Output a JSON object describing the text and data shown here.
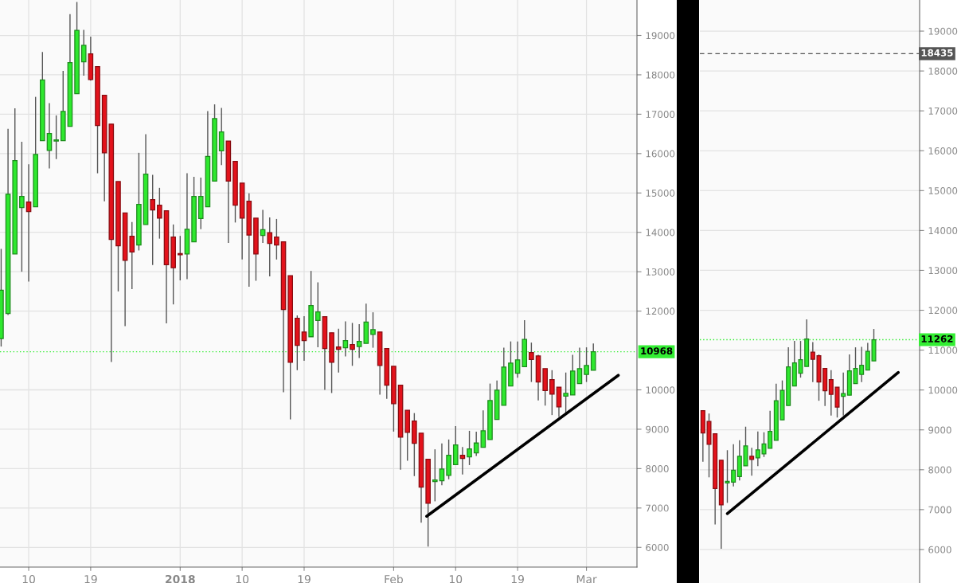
{
  "chart_data": [
    {
      "type": "candlestick",
      "x": [
        "2017-12-06",
        "2017-12-07",
        "2017-12-08",
        "2017-12-09",
        "2017-12-10",
        "2017-12-11",
        "2017-12-12",
        "2017-12-13",
        "2017-12-14",
        "2017-12-15",
        "2017-12-16",
        "2017-12-17",
        "2017-12-18",
        "2017-12-19",
        "2017-12-20",
        "2017-12-21",
        "2017-12-22",
        "2017-12-23",
        "2017-12-24",
        "2017-12-25",
        "2017-12-26",
        "2017-12-27",
        "2017-12-28",
        "2017-12-29",
        "2017-12-30",
        "2017-12-31",
        "2018-01-01",
        "2018-01-02",
        "2018-01-03",
        "2018-01-04",
        "2018-01-05",
        "2018-01-06",
        "2018-01-07",
        "2018-01-08",
        "2018-01-09",
        "2018-01-10",
        "2018-01-11",
        "2018-01-12",
        "2018-01-13",
        "2018-01-14",
        "2018-01-15",
        "2018-01-16",
        "2018-01-17",
        "2018-01-18",
        "2018-01-19",
        "2018-01-20",
        "2018-01-21",
        "2018-01-22",
        "2018-01-23",
        "2018-01-24",
        "2018-01-25",
        "2018-01-26",
        "2018-01-27",
        "2018-01-28",
        "2018-01-29",
        "2018-01-30",
        "2018-01-31",
        "2018-02-01",
        "2018-02-02",
        "2018-02-03",
        "2018-02-04",
        "2018-02-05",
        "2018-02-06",
        "2018-02-07",
        "2018-02-08",
        "2018-02-09",
        "2018-02-10",
        "2018-02-11",
        "2018-02-12",
        "2018-02-13",
        "2018-02-14",
        "2018-02-15",
        "2018-02-16",
        "2018-02-17",
        "2018-02-18",
        "2018-02-19",
        "2018-02-20",
        "2018-02-21",
        "2018-02-22",
        "2018-02-23",
        "2018-02-24",
        "2018-02-25",
        "2018-02-26",
        "2018-02-27",
        "2018-02-28",
        "2018-03-01",
        "2018-03-02"
      ],
      "ohlc": [
        [
          11300,
          13580,
          11100,
          12530
        ],
        [
          11940,
          16630,
          11900,
          14970
        ],
        [
          13450,
          17150,
          13450,
          15820
        ],
        [
          14630,
          16300,
          13000,
          14910
        ],
        [
          14770,
          15730,
          12750,
          14530
        ],
        [
          14650,
          17440,
          14650,
          15980
        ],
        [
          16330,
          18580,
          16330,
          17870
        ],
        [
          16080,
          17280,
          15620,
          16510
        ],
        [
          16320,
          16970,
          15860,
          16350
        ],
        [
          16330,
          18100,
          16330,
          17070
        ],
        [
          16690,
          19540,
          16690,
          18310
        ],
        [
          17520,
          19850,
          17520,
          19130
        ],
        [
          18330,
          19140,
          17980,
          18750
        ],
        [
          18530,
          18970,
          17850,
          17880
        ],
        [
          18210,
          18210,
          15500,
          16710
        ],
        [
          17480,
          17480,
          14790,
          16020
        ],
        [
          16750,
          16750,
          10710,
          13820
        ],
        [
          15290,
          15290,
          12500,
          13660
        ],
        [
          14490,
          14490,
          11620,
          13290
        ],
        [
          13900,
          14260,
          12560,
          13500
        ],
        [
          13680,
          16020,
          13540,
          14710
        ],
        [
          14200,
          16490,
          14200,
          15480
        ],
        [
          14830,
          15460,
          13170,
          14570
        ],
        [
          14690,
          15130,
          13840,
          14360
        ],
        [
          14550,
          14550,
          11690,
          13180
        ],
        [
          13880,
          14200,
          12170,
          13100
        ],
        [
          13460,
          13910,
          12780,
          13430
        ],
        [
          13450,
          15500,
          12810,
          14080
        ],
        [
          13760,
          15410,
          13760,
          14910
        ],
        [
          14350,
          15390,
          14080,
          14910
        ],
        [
          14650,
          17080,
          14650,
          15930
        ],
        [
          15300,
          17250,
          15300,
          16890
        ],
        [
          16070,
          17160,
          15710,
          16550
        ],
        [
          16320,
          16320,
          13730,
          15300
        ],
        [
          15800,
          15800,
          14250,
          14690
        ],
        [
          15250,
          15250,
          13310,
          14360
        ],
        [
          14790,
          14990,
          12620,
          13930
        ],
        [
          14360,
          14360,
          12770,
          13450
        ],
        [
          13920,
          14570,
          13730,
          14070
        ],
        [
          13990,
          14380,
          12880,
          13720
        ],
        [
          13880,
          14340,
          13310,
          13680
        ],
        [
          13760,
          13760,
          9940,
          12040
        ],
        [
          12900,
          12900,
          9250,
          10700
        ],
        [
          11820,
          11890,
          10500,
          11130
        ],
        [
          11470,
          11870,
          10740,
          11250
        ],
        [
          11350,
          13020,
          11350,
          12140
        ],
        [
          11760,
          12730,
          11080,
          11980
        ],
        [
          11860,
          11860,
          10000,
          11050
        ],
        [
          11450,
          11450,
          9920,
          10700
        ],
        [
          11090,
          11550,
          10440,
          11030
        ],
        [
          11070,
          11740,
          10850,
          11250
        ],
        [
          11150,
          11700,
          10610,
          11030
        ],
        [
          11100,
          11670,
          10810,
          11230
        ],
        [
          11180,
          12190,
          11180,
          11720
        ],
        [
          11410,
          11970,
          11070,
          11530
        ],
        [
          11470,
          11470,
          9880,
          10620
        ],
        [
          11050,
          11050,
          9770,
          10120
        ],
        [
          10600,
          10600,
          8940,
          9650
        ],
        [
          10120,
          10120,
          7970,
          8800
        ],
        [
          9480,
          9480,
          8200,
          8920
        ],
        [
          9210,
          9410,
          7810,
          8640
        ],
        [
          8900,
          8900,
          6630,
          7530
        ],
        [
          8240,
          8240,
          6020,
          7120
        ],
        [
          7670,
          8490,
          7170,
          7710
        ],
        [
          7690,
          8640,
          7580,
          7990
        ],
        [
          7830,
          8740,
          7730,
          8340
        ],
        [
          8100,
          9080,
          8100,
          8600
        ],
        [
          8340,
          8550,
          7850,
          8260
        ],
        [
          8300,
          8960,
          8090,
          8500
        ],
        [
          8400,
          8940,
          8320,
          8650
        ],
        [
          8540,
          9480,
          8540,
          8960
        ],
        [
          8740,
          10160,
          8740,
          9730
        ],
        [
          9250,
          10240,
          9250,
          9990
        ],
        [
          9610,
          11070,
          9610,
          10580
        ],
        [
          10100,
          11230,
          10100,
          10680
        ],
        [
          10420,
          11230,
          10310,
          10760
        ],
        [
          10590,
          11770,
          10590,
          11280
        ],
        [
          10950,
          11200,
          10200,
          10770
        ],
        [
          10860,
          10890,
          9730,
          10200
        ],
        [
          10540,
          10540,
          9600,
          9980
        ],
        [
          10260,
          10500,
          9360,
          9890
        ],
        [
          10070,
          10070,
          9310,
          9570
        ],
        [
          9840,
          10440,
          9360,
          9910
        ],
        [
          9870,
          10890,
          9870,
          10480
        ],
        [
          10160,
          11070,
          10160,
          10540
        ],
        [
          10390,
          11080,
          10200,
          10620
        ],
        [
          10500,
          11180,
          10500,
          10970
        ]
      ],
      "colors": [
        "#2ee82e",
        "#2ee82e",
        "#2ee82e",
        "#2ee82e",
        "#e3121b",
        "#2ee82e",
        "#2ee82e",
        "#2ee82e",
        "#2ee82e",
        "#2ee82e",
        "#2ee82e",
        "#2ee82e",
        "#2ee82e",
        "#e3121b",
        "#e3121b",
        "#e3121b",
        "#e3121b",
        "#e3121b",
        "#e3121b",
        "#e3121b",
        "#2ee82e",
        "#2ee82e",
        "#e3121b",
        "#e3121b",
        "#e3121b",
        "#e3121b",
        "#e3121b",
        "#2ee82e",
        "#2ee82e",
        "#2ee82e",
        "#2ee82e",
        "#2ee82e",
        "#2ee82e",
        "#e3121b",
        "#e3121b",
        "#e3121b",
        "#e3121b",
        "#e3121b",
        "#2ee82e",
        "#e3121b",
        "#e3121b",
        "#e3121b",
        "#e3121b",
        "#e3121b",
        "#e3121b",
        "#2ee82e",
        "#2ee82e",
        "#e3121b",
        "#e3121b",
        "#e3121b",
        "#2ee82e",
        "#e3121b",
        "#2ee82e",
        "#2ee82e",
        "#2ee82e",
        "#e3121b",
        "#e3121b",
        "#e3121b",
        "#e3121b",
        "#e3121b",
        "#e3121b",
        "#e3121b",
        "#e3121b",
        "#2ee82e",
        "#2ee82e",
        "#2ee82e",
        "#2ee82e",
        "#e3121b",
        "#2ee82e",
        "#2ee82e",
        "#2ee82e",
        "#2ee82e",
        "#2ee82e",
        "#2ee82e",
        "#2ee82e",
        "#2ee82e",
        "#2ee82e",
        "#e3121b",
        "#e3121b",
        "#e3121b",
        "#e3121b",
        "#e3121b",
        "#2ee82e",
        "#2ee82e",
        "#2ee82e",
        "#2ee82e",
        "#2ee82e"
      ],
      "series": [
        {
          "type": "line",
          "color": "#000000",
          "x": [
            "2018-02-05T19:00",
            "2018-03-05T15:00"
          ],
          "values": [
            6790,
            10370
          ]
        }
      ],
      "xlim": [
        "2017-12-05T20:00",
        "2018-03-08T08:00"
      ],
      "xticks": [
        {
          "value": "2017-12-10",
          "label": "10"
        },
        {
          "value": "2017-12-19",
          "label": "19"
        },
        {
          "value": "2018-01-01",
          "label": "2018"
        },
        {
          "value": "2018-01-10",
          "label": "10"
        },
        {
          "value": "2018-01-19",
          "label": "19"
        },
        {
          "value": "2018-02-01",
          "label": "Feb"
        },
        {
          "value": "2018-02-10",
          "label": "10"
        },
        {
          "value": "2018-02-19",
          "label": "19"
        },
        {
          "value": "2018-03-01",
          "label": "Mar"
        }
      ],
      "ylim": [
        5500,
        19900
      ],
      "yticks": [
        6000,
        7000,
        8000,
        9000,
        10000,
        12000,
        13000,
        14000,
        15000,
        16000,
        17000,
        18000,
        19000
      ],
      "ref_lines": [
        {
          "axis": "y",
          "value": 10968,
          "label": "10968",
          "color": "#33ee33",
          "line_style": "dotted"
        }
      ],
      "grid": true
    },
    {
      "type": "candlestick",
      "categories": [
        null,
        null,
        null,
        null,
        null,
        null,
        null,
        null,
        null,
        null,
        null,
        null,
        null,
        null,
        null,
        null,
        null,
        null,
        null,
        null,
        null,
        null,
        null,
        null,
        null,
        null,
        null,
        null,
        null,
        null,
        null,
        null,
        null,
        null,
        null,
        null
      ],
      "ohlc": [
        [
          9480,
          9480,
          8200,
          8920
        ],
        [
          9210,
          9410,
          7810,
          8640
        ],
        [
          8900,
          8900,
          6630,
          7530
        ],
        [
          8240,
          8240,
          6020,
          7120
        ],
        [
          7670,
          8490,
          7170,
          7710
        ],
        [
          7690,
          8640,
          7580,
          7990
        ],
        [
          7830,
          8740,
          7730,
          8340
        ],
        [
          8100,
          9080,
          8100,
          8600
        ],
        [
          8340,
          8550,
          7850,
          8260
        ],
        [
          8300,
          8960,
          8090,
          8500
        ],
        [
          8400,
          8940,
          8320,
          8650
        ],
        [
          8540,
          9480,
          8540,
          8960
        ],
        [
          8740,
          10160,
          8740,
          9730
        ],
        [
          9250,
          10240,
          9250,
          9990
        ],
        [
          9610,
          11070,
          9610,
          10580
        ],
        [
          10100,
          11230,
          10100,
          10680
        ],
        [
          10420,
          11230,
          10310,
          10760
        ],
        [
          10590,
          11770,
          10590,
          11280
        ],
        [
          10950,
          11200,
          10200,
          10770
        ],
        [
          10860,
          10890,
          9730,
          10200
        ],
        [
          10540,
          10540,
          9600,
          9980
        ],
        [
          10260,
          10500,
          9360,
          9890
        ],
        [
          10070,
          10070,
          9310,
          9570
        ],
        [
          9840,
          10440,
          9360,
          9910
        ],
        [
          9870,
          10890,
          9870,
          10480
        ],
        [
          10160,
          11070,
          10160,
          10540
        ],
        [
          10390,
          11080,
          10200,
          10620
        ],
        [
          10500,
          11180,
          10500,
          10970
        ],
        [
          10730,
          11530,
          10730,
          11260
        ],
        null,
        null,
        null,
        null,
        null,
        null,
        null
      ],
      "colors": [
        "#e3121b",
        "#e3121b",
        "#e3121b",
        "#e3121b",
        "#2ee82e",
        "#2ee82e",
        "#2ee82e",
        "#2ee82e",
        "#e3121b",
        "#2ee82e",
        "#2ee82e",
        "#2ee82e",
        "#2ee82e",
        "#2ee82e",
        "#2ee82e",
        "#2ee82e",
        "#2ee82e",
        "#2ee82e",
        "#e3121b",
        "#e3121b",
        "#e3121b",
        "#e3121b",
        "#e3121b",
        "#2ee82e",
        "#2ee82e",
        "#2ee82e",
        "#2ee82e",
        "#2ee82e",
        "#2ee82e",
        null,
        null,
        null,
        null,
        null,
        null,
        null
      ],
      "series": [
        {
          "type": "line",
          "color": "#000000",
          "values": [
            null,
            null,
            null,
            null,
            6900,
            null,
            null,
            null,
            null,
            null,
            null,
            null,
            null,
            null,
            null,
            null,
            null,
            null,
            null,
            null,
            null,
            null,
            null,
            null,
            null,
            null,
            null,
            null,
            null,
            null,
            null,
            null,
            10440,
            null,
            null,
            null
          ]
        }
      ],
      "ylim": [
        5160,
        19780
      ],
      "yticks": [
        6000,
        7000,
        8000,
        9000,
        10000,
        11000,
        12000,
        13000,
        14000,
        15000,
        16000,
        17000,
        18000,
        19000
      ],
      "ref_lines": [
        {
          "axis": "y",
          "value": 11262,
          "label": "11262",
          "color": "#33ee33",
          "line_style": "dotted"
        },
        {
          "axis": "y",
          "value": 18435,
          "label": "18435",
          "color": "#555555",
          "line_style": "dashed"
        }
      ],
      "tick_labels": "y",
      "grid": "y"
    }
  ]
}
